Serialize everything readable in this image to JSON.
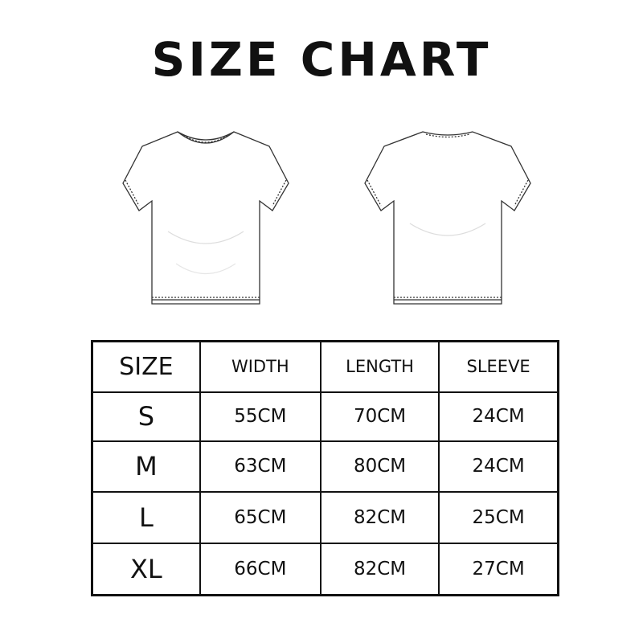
{
  "title": "SIZE CHART",
  "table": {
    "headers": [
      "SIZE",
      "WIDTH",
      "LENGTH",
      "SLEEVE"
    ],
    "rows": [
      [
        "S",
        "55CM",
        "70CM",
        "24CM"
      ],
      [
        "M",
        "63CM",
        "80CM",
        "24CM"
      ],
      [
        "L",
        "65CM",
        "82CM",
        "25CM"
      ],
      [
        "XL",
        "66CM",
        "82CM",
        "27CM"
      ]
    ]
  }
}
